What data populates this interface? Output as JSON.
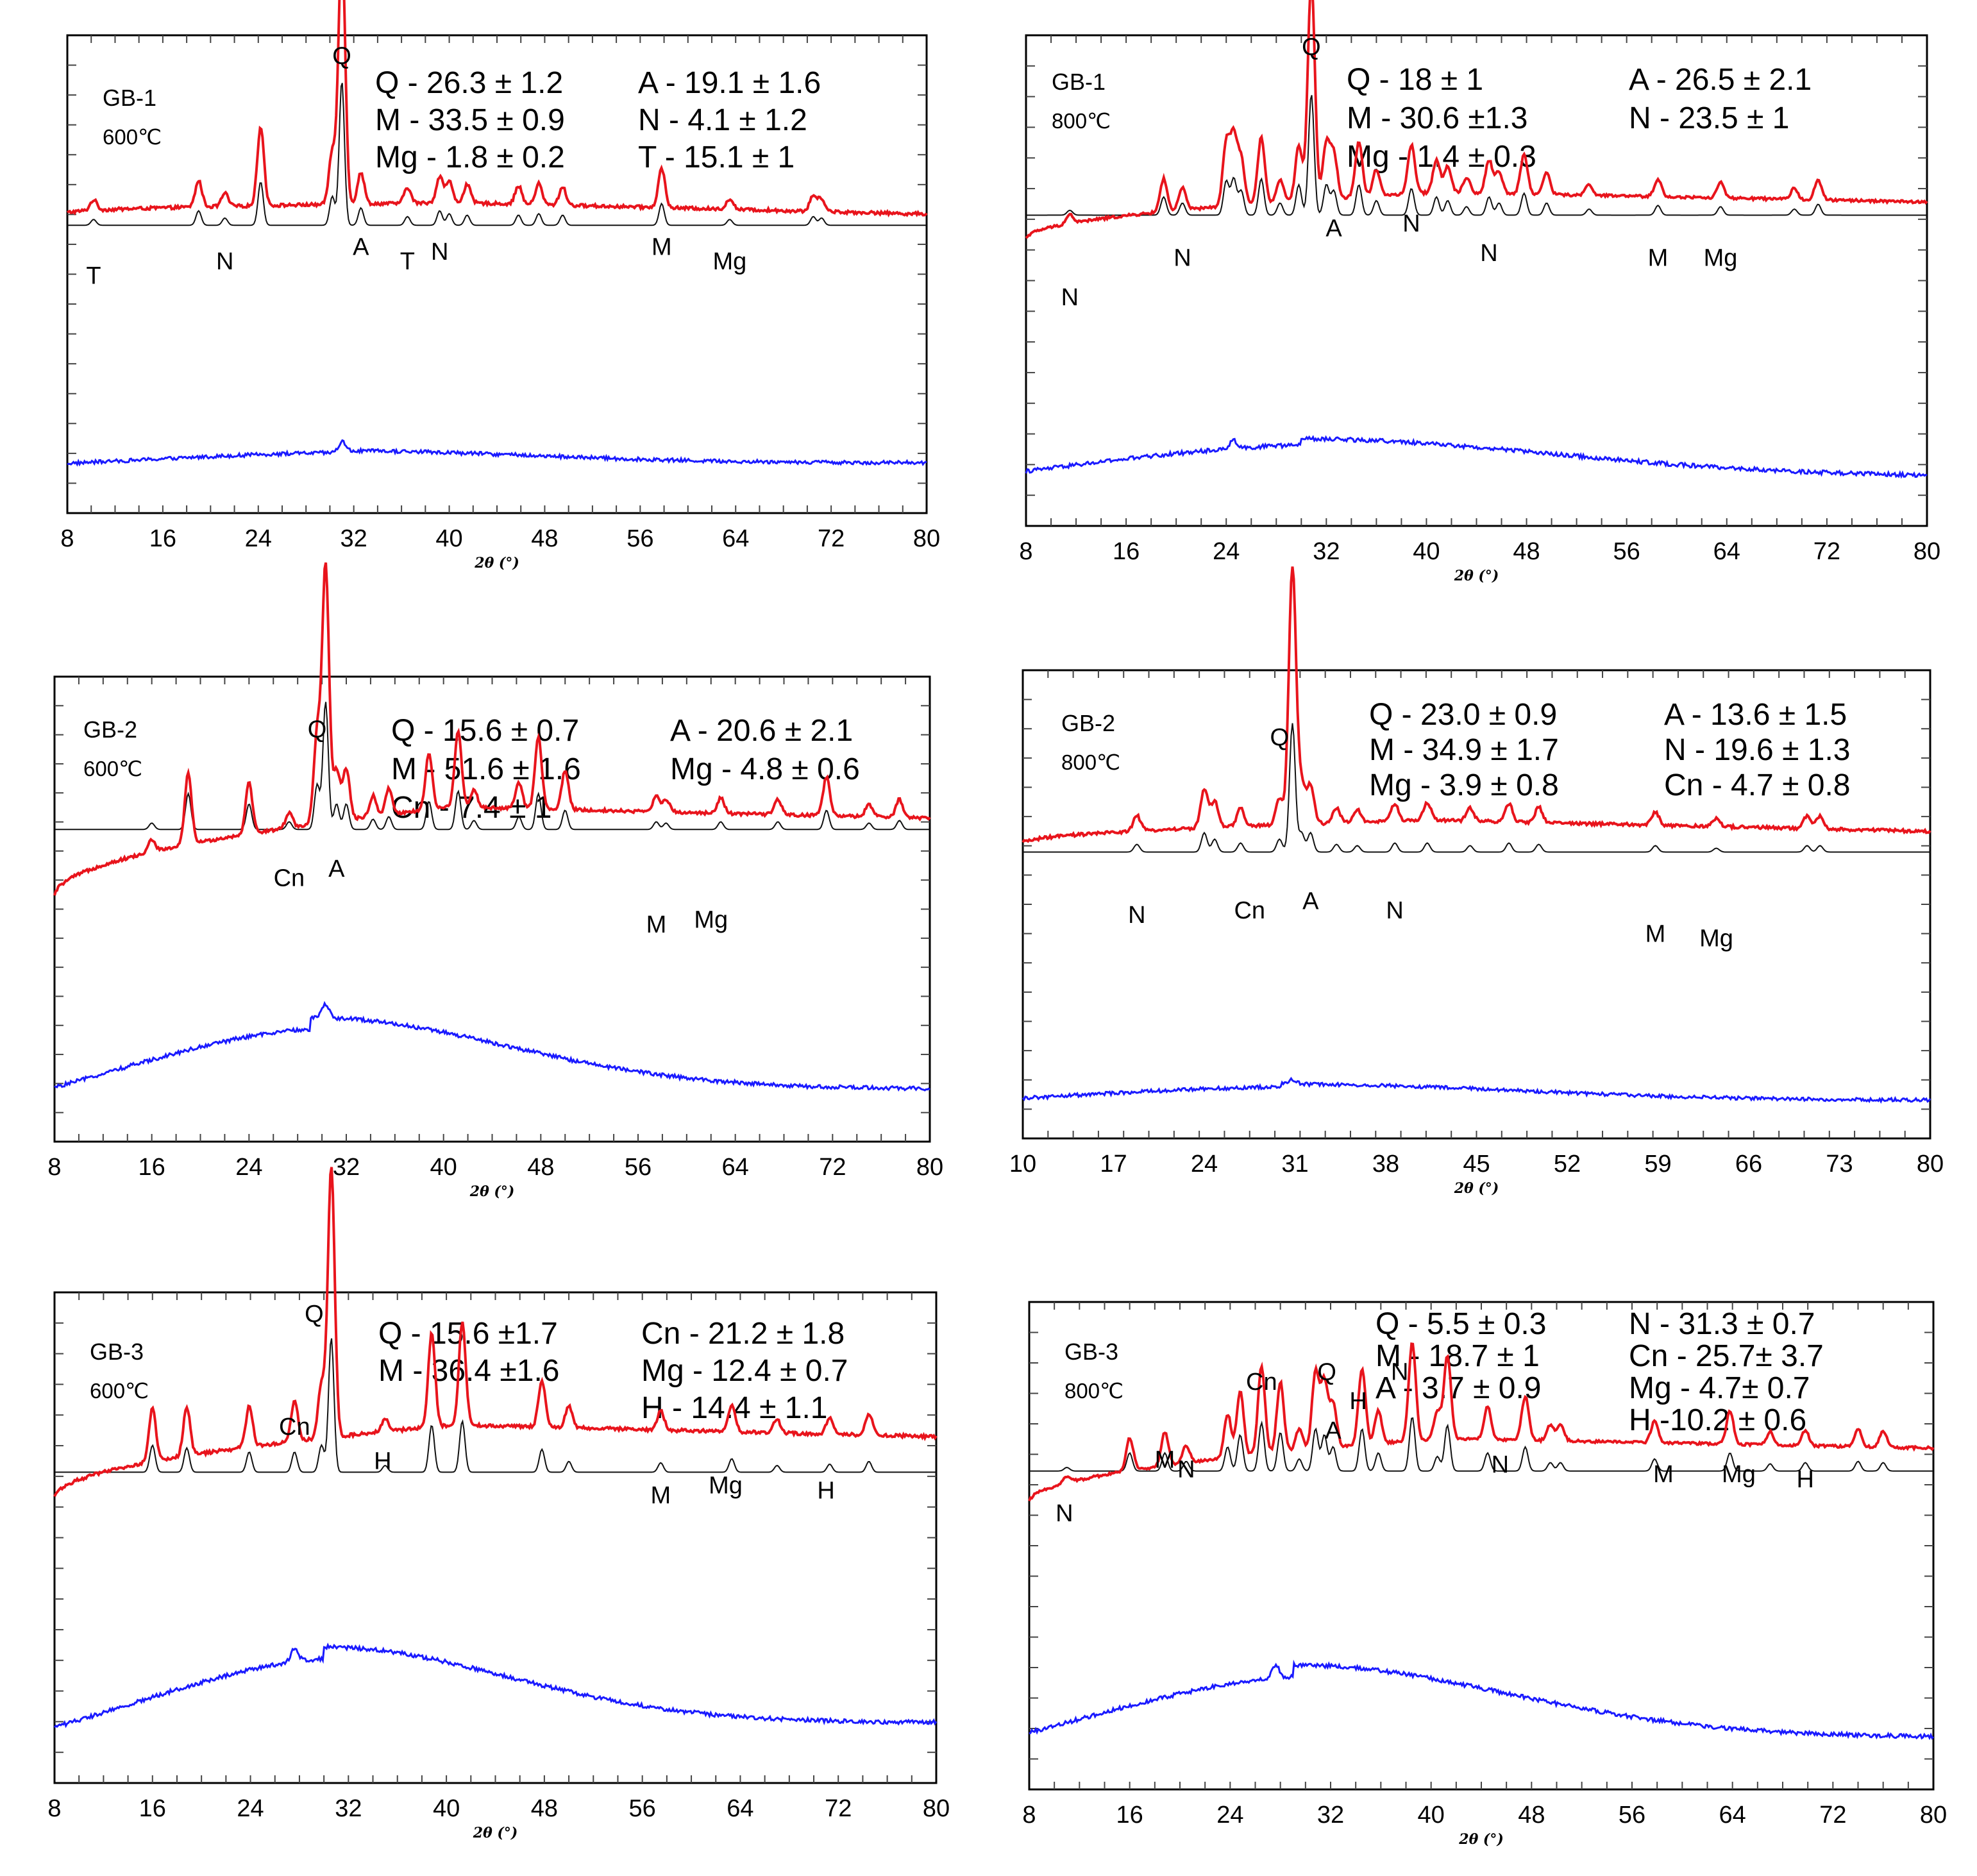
{
  "chart_data": [
    {
      "type": "line",
      "panel": "GB-1 600C",
      "sample": "GB-1",
      "temperature": "600℃",
      "xlabel": "2θ (°)",
      "xlim": [
        8,
        80
      ],
      "x_ticks": [
        "8",
        "16",
        "24",
        "32",
        "40",
        "48",
        "56",
        "64",
        "72",
        "80"
      ],
      "quantities": [
        "Q - 26.3 ± 1.2",
        "M - 33.5 ± 0.9",
        "Mg - 1.8 ± 0.2",
        "A - 19.1 ± 1.6",
        "N - 4.1 ± 1.2",
        "T - 15.1 ± 1"
      ],
      "peak_labels": [
        {
          "text": "T",
          "x": 10.2,
          "level": 0.52
        },
        {
          "text": "N",
          "x": 21.2,
          "level": 0.49
        },
        {
          "text": "Q",
          "x": 31,
          "level": 0.06
        },
        {
          "text": "A",
          "x": 32.6,
          "level": 0.46
        },
        {
          "text": "T",
          "x": 36.5,
          "level": 0.49
        },
        {
          "text": "N",
          "x": 39.2,
          "level": 0.47
        },
        {
          "text": "M",
          "x": 57.8,
          "level": 0.46
        },
        {
          "text": "Mg",
          "x": 63.5,
          "level": 0.49
        }
      ],
      "peaks": [
        [
          10.2,
          0.04
        ],
        [
          19.0,
          0.1
        ],
        [
          21.2,
          0.05
        ],
        [
          24.2,
          0.3
        ],
        [
          30.2,
          0.2
        ],
        [
          31.0,
          1.0
        ],
        [
          32.6,
          0.12
        ],
        [
          36.5,
          0.06
        ],
        [
          39.2,
          0.1
        ],
        [
          40.0,
          0.08
        ],
        [
          41.5,
          0.07
        ],
        [
          45.8,
          0.07
        ],
        [
          47.5,
          0.08
        ],
        [
          49.5,
          0.07
        ],
        [
          57.8,
          0.15
        ],
        [
          63.5,
          0.04
        ],
        [
          70.5,
          0.06
        ],
        [
          71.2,
          0.05
        ]
      ],
      "red_bg": [
        0.08,
        0.12
      ],
      "blue_hump": {
        "center": 31,
        "width": 16,
        "height": 0.05,
        "base": 0.03,
        "spike_x": 31,
        "spike_h": 0.04
      }
    },
    {
      "type": "line",
      "panel": "GB-1 800C",
      "sample": "GB-1",
      "temperature": "800℃",
      "xlabel": "2θ (°)",
      "xlim": [
        8,
        80
      ],
      "x_ticks": [
        "8",
        "16",
        "24",
        "32",
        "40",
        "48",
        "56",
        "64",
        "72",
        "80"
      ],
      "quantities": [
        "Q - 18 ± 1",
        "M - 30.6 ±1.3",
        "Mg - 1.4 ± 0.3",
        "A - 26.5 ± 2.1",
        "N - 23.5 ± 1"
      ],
      "peak_labels": [
        {
          "text": "N",
          "x": 11.5,
          "level": 0.55
        },
        {
          "text": "N",
          "x": 20.5,
          "level": 0.47
        },
        {
          "text": "Q",
          "x": 30.8,
          "level": 0.04
        },
        {
          "text": "A",
          "x": 32.6,
          "level": 0.41
        },
        {
          "text": "N",
          "x": 38.8,
          "level": 0.4
        },
        {
          "text": "N",
          "x": 45,
          "level": 0.46
        },
        {
          "text": "M",
          "x": 58.5,
          "level": 0.47
        },
        {
          "text": "Mg",
          "x": 63.5,
          "level": 0.47
        }
      ],
      "peaks": [
        [
          11.5,
          0.04
        ],
        [
          19.0,
          0.15
        ],
        [
          20.5,
          0.1
        ],
        [
          24.0,
          0.28
        ],
        [
          24.6,
          0.3
        ],
        [
          25.2,
          0.2
        ],
        [
          26.8,
          0.3
        ],
        [
          28.3,
          0.1
        ],
        [
          29.8,
          0.25
        ],
        [
          30.8,
          1.0
        ],
        [
          32.0,
          0.25
        ],
        [
          32.6,
          0.2
        ],
        [
          34.6,
          0.25
        ],
        [
          36.0,
          0.12
        ],
        [
          38.8,
          0.22
        ],
        [
          40.8,
          0.15
        ],
        [
          41.7,
          0.12
        ],
        [
          43.2,
          0.07
        ],
        [
          45.0,
          0.15
        ],
        [
          45.8,
          0.1
        ],
        [
          47.8,
          0.18
        ],
        [
          49.6,
          0.1
        ],
        [
          53.0,
          0.05
        ],
        [
          58.5,
          0.08
        ],
        [
          63.5,
          0.07
        ],
        [
          69.4,
          0.05
        ],
        [
          71.3,
          0.09
        ]
      ],
      "red_bg": [
        0.05,
        0.26
      ],
      "blue_hump": {
        "center": 30,
        "width": 20,
        "height": 0.14,
        "base": 0.02,
        "spike_x": 24.6,
        "spike_h": 0.03
      }
    },
    {
      "type": "line",
      "panel": "GB-2 600C",
      "sample": "GB-2",
      "temperature": "600℃",
      "xlabel": "2θ (°)",
      "xlim": [
        8,
        80
      ],
      "x_ticks": [
        "8",
        "16",
        "24",
        "32",
        "40",
        "48",
        "56",
        "64",
        "72",
        "80"
      ],
      "quantities": [
        "Q - 15.6 ± 0.7",
        "M - 51.6 ± 1.6",
        "Cn - 7.4 ± 1",
        "A - 20.6 ± 2.1",
        "Mg - 4.8 ± 0.6"
      ],
      "peak_labels": [
        {
          "text": "Q",
          "x": 29.6,
          "level": 0.13
        },
        {
          "text": "Cn",
          "x": 27.3,
          "level": 0.45
        },
        {
          "text": "A",
          "x": 31.2,
          "level": 0.43
        },
        {
          "text": "M",
          "x": 57.5,
          "level": 0.55
        },
        {
          "text": "Mg",
          "x": 62,
          "level": 0.54
        }
      ],
      "peaks": [
        [
          16.0,
          0.05
        ],
        [
          19.0,
          0.28
        ],
        [
          24.0,
          0.2
        ],
        [
          27.3,
          0.06
        ],
        [
          29.6,
          0.35
        ],
        [
          30.3,
          1.0
        ],
        [
          31.2,
          0.2
        ],
        [
          32.0,
          0.2
        ],
        [
          34.2,
          0.08
        ],
        [
          35.5,
          0.1
        ],
        [
          38.8,
          0.22
        ],
        [
          41.2,
          0.3
        ],
        [
          42.5,
          0.07
        ],
        [
          46.2,
          0.1
        ],
        [
          47.8,
          0.28
        ],
        [
          50.0,
          0.15
        ],
        [
          57.5,
          0.06
        ],
        [
          58.3,
          0.05
        ],
        [
          62.8,
          0.06
        ],
        [
          67.5,
          0.06
        ],
        [
          71.5,
          0.15
        ],
        [
          75.0,
          0.05
        ],
        [
          77.5,
          0.07
        ]
      ],
      "red_bg": [
        0.05,
        0.4
      ],
      "blue_hump": {
        "center": 29,
        "width": 16,
        "height": 0.28,
        "base": 0.04,
        "spike_x": 30.3,
        "spike_h": 0.05
      }
    },
    {
      "type": "line",
      "panel": "GB-2 800C",
      "sample": "GB-2",
      "temperature": "800℃",
      "xlabel": "2θ (°)",
      "xlim": [
        10,
        80
      ],
      "x_ticks": [
        "10",
        "17",
        "24",
        "31",
        "38",
        "45",
        "52",
        "59",
        "66",
        "73",
        "80"
      ],
      "quantities": [
        "Q - 23.0 ± 0.9",
        "M - 34.9 ± 1.7",
        "Mg - 3.9 ± 0.8",
        "A - 13.6 ± 1.5",
        "N - 19.6 ± 1.3",
        "Cn - 4.7 ± 0.8"
      ],
      "peak_labels": [
        {
          "text": "N",
          "x": 18.8,
          "level": 0.54
        },
        {
          "text": "Q",
          "x": 29.8,
          "level": 0.16
        },
        {
          "text": "Cn",
          "x": 27.5,
          "level": 0.53
        },
        {
          "text": "A",
          "x": 32.2,
          "level": 0.51
        },
        {
          "text": "N",
          "x": 38.7,
          "level": 0.53
        },
        {
          "text": "M",
          "x": 58.8,
          "level": 0.58
        },
        {
          "text": "Mg",
          "x": 63.5,
          "level": 0.59
        }
      ],
      "peaks": [
        [
          18.8,
          0.06
        ],
        [
          24.0,
          0.15
        ],
        [
          24.8,
          0.1
        ],
        [
          26.8,
          0.07
        ],
        [
          29.8,
          0.1
        ],
        [
          30.8,
          1.0
        ],
        [
          31.5,
          0.15
        ],
        [
          32.2,
          0.15
        ],
        [
          34.2,
          0.06
        ],
        [
          35.8,
          0.05
        ],
        [
          38.7,
          0.07
        ],
        [
          41.2,
          0.07
        ],
        [
          44.5,
          0.05
        ],
        [
          47.5,
          0.07
        ],
        [
          49.8,
          0.06
        ],
        [
          58.8,
          0.05
        ],
        [
          63.5,
          0.03
        ],
        [
          70.5,
          0.05
        ],
        [
          71.5,
          0.05
        ]
      ],
      "red_bg": [
        0.03,
        0.12
      ],
      "blue_hump": {
        "center": 30,
        "width": 18,
        "height": 0.07,
        "base": 0.02,
        "spike_x": 30.8,
        "spike_h": 0.02
      }
    },
    {
      "type": "line",
      "panel": "GB-3 600C",
      "sample": "GB-3",
      "temperature": "600℃",
      "xlabel": "2θ (°)",
      "xlim": [
        8,
        80
      ],
      "x_ticks": [
        "8",
        "16",
        "24",
        "32",
        "40",
        "48",
        "56",
        "64",
        "72",
        "80"
      ],
      "quantities": [
        "Q - 15.6 ±1.7",
        "M - 36.4 ±1.6",
        "Cn - 21.2 ± 1.8",
        "Mg - 12.4 ± 0.7",
        "H - 14.4 ± 1.1"
      ],
      "peak_labels": [
        {
          "text": "Q",
          "x": 29.2,
          "level": 0.06
        },
        {
          "text": "Cn",
          "x": 27.6,
          "level": 0.29
        },
        {
          "text": "H",
          "x": 34.8,
          "level": 0.36
        },
        {
          "text": "M",
          "x": 57.5,
          "level": 0.43
        },
        {
          "text": "Mg",
          "x": 62.8,
          "level": 0.41
        },
        {
          "text": "H",
          "x": 71,
          "level": 0.42
        }
      ],
      "peaks": [
        [
          16.0,
          0.2
        ],
        [
          18.8,
          0.18
        ],
        [
          23.9,
          0.15
        ],
        [
          27.6,
          0.15
        ],
        [
          29.8,
          0.2
        ],
        [
          30.6,
          1.0
        ],
        [
          35.0,
          0.05
        ],
        [
          38.8,
          0.35
        ],
        [
          41.3,
          0.38
        ],
        [
          47.8,
          0.17
        ],
        [
          50.0,
          0.08
        ],
        [
          57.5,
          0.07
        ],
        [
          63.3,
          0.1
        ],
        [
          67.0,
          0.05
        ],
        [
          71.3,
          0.06
        ],
        [
          74.5,
          0.08
        ]
      ],
      "red_bg": [
        0.05,
        0.32
      ],
      "blue_hump": {
        "center": 30,
        "width": 15,
        "height": 0.28,
        "base": 0.08,
        "spike_x": 27.6,
        "spike_h": 0.05
      }
    },
    {
      "type": "line",
      "panel": "GB-3 800C",
      "sample": "GB-3",
      "temperature": "800℃",
      "xlabel": "2θ (°)",
      "xlim": [
        8,
        80
      ],
      "x_ticks": [
        "8",
        "16",
        "24",
        "32",
        "40",
        "48",
        "56",
        "64",
        "72",
        "80"
      ],
      "quantities": [
        "Q - 5.5 ± 0.3",
        "M - 18.7 ± 1",
        "A - 3.7 ± 0.9",
        "N - 31.3 ± 0.7",
        "Cn - 25.7± 3.7",
        "Mg - 4.7± 0.7",
        "H -10.2 ± 0.6"
      ],
      "peak_labels": [
        {
          "text": "N",
          "x": 10.8,
          "level": 0.45
        },
        {
          "text": "M",
          "x": 18.8,
          "level": 0.34
        },
        {
          "text": "N",
          "x": 20.5,
          "level": 0.36
        },
        {
          "text": "Cn",
          "x": 26.5,
          "level": 0.18
        },
        {
          "text": "Q",
          "x": 31.7,
          "level": 0.16
        },
        {
          "text": "A",
          "x": 32.2,
          "level": 0.28
        },
        {
          "text": "H",
          "x": 34.2,
          "level": 0.22
        },
        {
          "text": "N",
          "x": 37.5,
          "level": 0.16
        },
        {
          "text": "N",
          "x": 45.5,
          "level": 0.35
        },
        {
          "text": "M",
          "x": 58.5,
          "level": 0.37
        },
        {
          "text": "Mg",
          "x": 64.5,
          "level": 0.37
        },
        {
          "text": "H",
          "x": 69.8,
          "level": 0.38
        }
      ],
      "peaks": [
        [
          11.0,
          0.03
        ],
        [
          16.0,
          0.15
        ],
        [
          18.8,
          0.15
        ],
        [
          20.5,
          0.08
        ],
        [
          23.8,
          0.2
        ],
        [
          24.8,
          0.3
        ],
        [
          26.5,
          0.4
        ],
        [
          28.0,
          0.32
        ],
        [
          29.5,
          0.1
        ],
        [
          30.8,
          0.35
        ],
        [
          31.5,
          0.3
        ],
        [
          32.2,
          0.2
        ],
        [
          34.5,
          0.35
        ],
        [
          35.8,
          0.15
        ],
        [
          38.5,
          0.45
        ],
        [
          40.5,
          0.12
        ],
        [
          41.3,
          0.38
        ],
        [
          44.5,
          0.15
        ],
        [
          47.5,
          0.2
        ],
        [
          49.5,
          0.07
        ],
        [
          50.3,
          0.07
        ],
        [
          57.8,
          0.1
        ],
        [
          63.8,
          0.15
        ],
        [
          67.0,
          0.06
        ],
        [
          69.8,
          0.07
        ],
        [
          74.0,
          0.08
        ],
        [
          76.0,
          0.07
        ]
      ],
      "red_bg": [
        0.06,
        0.35
      ],
      "blue_hump": {
        "center": 29,
        "width": 17,
        "height": 0.27,
        "base": 0.05,
        "spike_x": 27.6,
        "spike_h": 0.05
      }
    }
  ]
}
